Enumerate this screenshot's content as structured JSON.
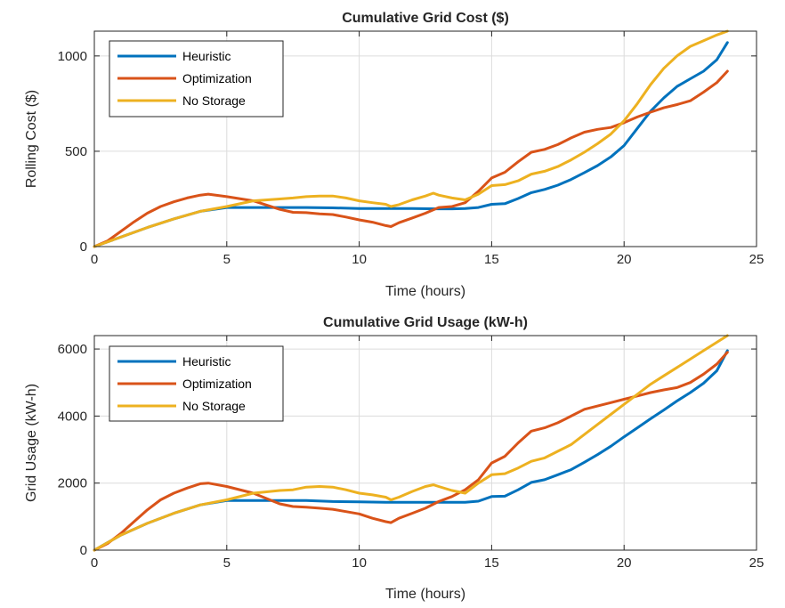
{
  "chart_data": [
    {
      "type": "line",
      "title": "Cumulative Grid Cost ($)",
      "xlabel": "Time (hours)",
      "ylabel": "Rolling Cost ($)",
      "xlim": [
        0,
        25
      ],
      "ylim": [
        0,
        1130
      ],
      "xticks": [
        0,
        5,
        10,
        15,
        20,
        25
      ],
      "yticks": [
        0,
        500,
        1000
      ],
      "grid": true,
      "legend_position": "top-left",
      "series": [
        {
          "name": "Heuristic",
          "color": "#0072BD",
          "x": [
            0,
            1,
            2,
            3,
            4,
            5,
            6,
            7,
            8,
            9,
            10,
            11,
            12,
            13,
            13.5,
            14,
            14.5,
            15,
            15.5,
            16,
            16.5,
            17,
            17.5,
            18,
            18.5,
            19,
            19.5,
            20,
            20.5,
            21,
            21.5,
            22,
            22.5,
            23,
            23.5,
            23.9
          ],
          "y": [
            0,
            50,
            100,
            145,
            185,
            205,
            205,
            205,
            205,
            203,
            200,
            200,
            200,
            198,
            198,
            200,
            205,
            222,
            225,
            252,
            283,
            300,
            322,
            352,
            388,
            425,
            470,
            530,
            620,
            710,
            780,
            840,
            880,
            920,
            980,
            1070
          ]
        },
        {
          "name": "Optimization",
          "color": "#D95319",
          "x": [
            0,
            0.5,
            1,
            1.5,
            2,
            2.5,
            3,
            3.5,
            4,
            4.3,
            5,
            6,
            7,
            7.5,
            8,
            8.5,
            9,
            9.5,
            10,
            10.5,
            11,
            11.2,
            11.5,
            12,
            12.5,
            13,
            13.5,
            14,
            14.5,
            15,
            15.5,
            16,
            16.5,
            17,
            17.5,
            18,
            18.5,
            19,
            19.5,
            20,
            20.5,
            21,
            21.5,
            22,
            22.5,
            23,
            23.5,
            23.9
          ],
          "y": [
            0,
            30,
            80,
            130,
            175,
            210,
            235,
            255,
            270,
            275,
            262,
            240,
            195,
            180,
            178,
            172,
            168,
            155,
            140,
            128,
            110,
            105,
            125,
            150,
            175,
            205,
            210,
            230,
            290,
            360,
            390,
            445,
            495,
            510,
            535,
            570,
            600,
            615,
            625,
            650,
            680,
            705,
            728,
            745,
            765,
            810,
            860,
            920
          ]
        },
        {
          "name": "No Storage",
          "color": "#EDB120",
          "x": [
            0,
            1,
            2,
            3,
            4,
            5,
            6,
            7,
            7.5,
            8,
            8.5,
            9,
            9.5,
            10,
            10.5,
            11,
            11.2,
            11.5,
            12,
            12.5,
            12.8,
            13,
            13.5,
            14,
            14.5,
            15,
            15.5,
            16,
            16.5,
            17,
            17.5,
            18,
            18.5,
            19,
            19.5,
            20,
            20.5,
            21,
            21.5,
            22,
            22.5,
            23,
            23.5,
            23.9
          ],
          "y": [
            0,
            50,
            100,
            145,
            185,
            210,
            240,
            250,
            255,
            262,
            265,
            265,
            255,
            240,
            230,
            222,
            210,
            220,
            245,
            265,
            280,
            270,
            255,
            245,
            275,
            320,
            325,
            345,
            380,
            395,
            420,
            455,
            495,
            540,
            590,
            660,
            750,
            850,
            935,
            1000,
            1050,
            1080,
            1110,
            1130
          ]
        }
      ]
    },
    {
      "type": "line",
      "title": "Cumulative Grid Usage (kW-h)",
      "xlabel": "Time (hours)",
      "ylabel": "Grid Usage (kW-h)",
      "xlim": [
        0,
        25
      ],
      "ylim": [
        0,
        6400
      ],
      "xticks": [
        0,
        5,
        10,
        15,
        20,
        25
      ],
      "yticks": [
        0,
        2000,
        4000,
        6000
      ],
      "grid": true,
      "legend_position": "top-left",
      "series": [
        {
          "name": "Heuristic",
          "color": "#0072BD",
          "x": [
            0,
            1,
            2,
            3,
            4,
            5,
            6,
            7,
            8,
            9,
            10,
            11,
            12,
            13,
            14,
            14.5,
            15,
            15.5,
            16,
            16.5,
            17,
            17.5,
            18,
            18.5,
            19,
            19.5,
            20,
            20.5,
            21,
            21.5,
            22,
            22.5,
            23,
            23.5,
            23.9
          ],
          "y": [
            0,
            450,
            800,
            1100,
            1350,
            1480,
            1480,
            1480,
            1480,
            1450,
            1440,
            1430,
            1430,
            1430,
            1430,
            1460,
            1600,
            1610,
            1800,
            2020,
            2100,
            2250,
            2400,
            2620,
            2850,
            3100,
            3380,
            3650,
            3920,
            4180,
            4450,
            4700,
            4980,
            5350,
            5950
          ]
        },
        {
          "name": "Optimization",
          "color": "#D95319",
          "x": [
            0,
            0.5,
            1,
            1.5,
            2,
            2.5,
            3,
            3.5,
            4,
            4.3,
            5,
            6,
            7,
            7.5,
            8,
            8.5,
            9,
            9.5,
            10,
            10.5,
            11,
            11.2,
            11.5,
            12,
            12.5,
            13,
            13.5,
            14,
            14.5,
            15,
            15.5,
            16,
            16.5,
            17,
            17.5,
            18,
            18.5,
            19,
            19.5,
            20,
            20.5,
            21,
            21.5,
            22,
            22.5,
            23,
            23.5,
            23.9
          ],
          "y": [
            0,
            200,
            500,
            850,
            1200,
            1500,
            1700,
            1850,
            1980,
            2000,
            1900,
            1700,
            1380,
            1300,
            1280,
            1250,
            1220,
            1150,
            1080,
            950,
            850,
            820,
            950,
            1100,
            1250,
            1450,
            1600,
            1800,
            2100,
            2600,
            2800,
            3200,
            3550,
            3650,
            3800,
            4000,
            4200,
            4300,
            4400,
            4500,
            4600,
            4700,
            4780,
            4850,
            5000,
            5250,
            5550,
            5900
          ]
        },
        {
          "name": "No Storage",
          "color": "#EDB120",
          "x": [
            0,
            1,
            2,
            3,
            4,
            5,
            6,
            7,
            7.5,
            8,
            8.5,
            9,
            9.5,
            10,
            10.5,
            11,
            11.2,
            11.5,
            12,
            12.5,
            12.8,
            13,
            13.5,
            14,
            14.5,
            15,
            15.5,
            16,
            16.5,
            17,
            17.5,
            18,
            18.5,
            19,
            19.5,
            20,
            20.5,
            21,
            21.5,
            22,
            22.5,
            23,
            23.5,
            23.9
          ],
          "y": [
            0,
            450,
            800,
            1100,
            1350,
            1500,
            1700,
            1780,
            1800,
            1880,
            1900,
            1880,
            1800,
            1700,
            1650,
            1580,
            1500,
            1580,
            1750,
            1900,
            1950,
            1900,
            1780,
            1700,
            2000,
            2250,
            2280,
            2450,
            2650,
            2750,
            2950,
            3150,
            3450,
            3750,
            4050,
            4350,
            4650,
            4950,
            5200,
            5450,
            5700,
            5950,
            6200,
            6400
          ]
        }
      ]
    }
  ]
}
